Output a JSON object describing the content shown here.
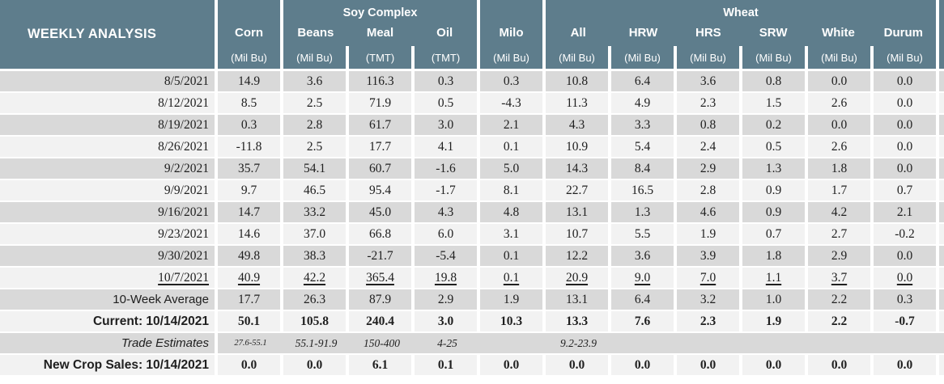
{
  "colors": {
    "header_bg": "#5E7D8C",
    "row_dark": "#D9D9D9",
    "row_light": "#F2F2F2",
    "header_text": "#FFFFFF",
    "data_text": "#202020"
  },
  "chart_data": {
    "type": "table",
    "title": "WEEKLY ANALYSIS",
    "column_groups": [
      {
        "label": "",
        "columns": [
          "Corn"
        ]
      },
      {
        "label": "Soy Complex",
        "columns": [
          "Beans",
          "Meal",
          "Oil"
        ]
      },
      {
        "label": "",
        "columns": [
          "Milo"
        ]
      },
      {
        "label": "Wheat",
        "columns": [
          "All",
          "HRW",
          "HRS",
          "SRW",
          "White",
          "Durum"
        ]
      }
    ],
    "columns": [
      {
        "name": "Corn",
        "unit": "(Mil Bu)"
      },
      {
        "name": "Beans",
        "unit": "(Mil Bu)"
      },
      {
        "name": "Meal",
        "unit": "(TMT)"
      },
      {
        "name": "Oil",
        "unit": "(TMT)"
      },
      {
        "name": "Milo",
        "unit": "(Mil Bu)"
      },
      {
        "name": "All",
        "unit": "(Mil Bu)"
      },
      {
        "name": "HRW",
        "unit": "(Mil Bu)"
      },
      {
        "name": "HRS",
        "unit": "(Mil Bu)"
      },
      {
        "name": "SRW",
        "unit": "(Mil Bu)"
      },
      {
        "name": "White",
        "unit": "(Mil Bu)"
      },
      {
        "name": "Durum",
        "unit": "(Mil Bu)"
      }
    ],
    "rows": [
      {
        "label": "8/5/2021",
        "label_style": "date",
        "style": "normal",
        "values": [
          "14.9",
          "3.6",
          "116.3",
          "0.3",
          "0.3",
          "10.8",
          "6.4",
          "3.6",
          "0.8",
          "0.0",
          "0.0"
        ]
      },
      {
        "label": "8/12/2021",
        "label_style": "date",
        "style": "normal",
        "values": [
          "8.5",
          "2.5",
          "71.9",
          "0.5",
          "-4.3",
          "11.3",
          "4.9",
          "2.3",
          "1.5",
          "2.6",
          "0.0"
        ]
      },
      {
        "label": "8/19/2021",
        "label_style": "date",
        "style": "normal",
        "values": [
          "0.3",
          "2.8",
          "61.7",
          "3.0",
          "2.1",
          "4.3",
          "3.3",
          "0.8",
          "0.2",
          "0.0",
          "0.0"
        ]
      },
      {
        "label": "8/26/2021",
        "label_style": "date",
        "style": "normal",
        "values": [
          "-11.8",
          "2.5",
          "17.7",
          "4.1",
          "0.1",
          "10.9",
          "5.4",
          "2.4",
          "0.5",
          "2.6",
          "0.0"
        ]
      },
      {
        "label": "9/2/2021",
        "label_style": "date",
        "style": "normal",
        "values": [
          "35.7",
          "54.1",
          "60.7",
          "-1.6",
          "5.0",
          "14.3",
          "8.4",
          "2.9",
          "1.3",
          "1.8",
          "0.0"
        ]
      },
      {
        "label": "9/9/2021",
        "label_style": "date",
        "style": "normal",
        "values": [
          "9.7",
          "46.5",
          "95.4",
          "-1.7",
          "8.1",
          "22.7",
          "16.5",
          "2.8",
          "0.9",
          "1.7",
          "0.7"
        ]
      },
      {
        "label": "9/16/2021",
        "label_style": "date",
        "style": "normal",
        "values": [
          "14.7",
          "33.2",
          "45.0",
          "4.3",
          "4.8",
          "13.1",
          "1.3",
          "4.6",
          "0.9",
          "4.2",
          "2.1"
        ]
      },
      {
        "label": "9/23/2021",
        "label_style": "date",
        "style": "normal",
        "values": [
          "14.6",
          "37.0",
          "66.8",
          "6.0",
          "3.1",
          "10.7",
          "5.5",
          "1.9",
          "0.7",
          "2.7",
          "-0.2"
        ]
      },
      {
        "label": "9/30/2021",
        "label_style": "date",
        "style": "normal",
        "values": [
          "49.8",
          "38.3",
          "-21.7",
          "-5.4",
          "0.1",
          "12.2",
          "3.6",
          "3.9",
          "1.8",
          "2.9",
          "0.0"
        ]
      },
      {
        "label": "10/7/2021",
        "label_style": "date",
        "style": "underline",
        "values": [
          "40.9",
          "42.2",
          "365.4",
          "19.8",
          "0.1",
          "20.9",
          "9.0",
          "7.0",
          "1.1",
          "3.7",
          "0.0"
        ]
      },
      {
        "label": "10-Week Average",
        "label_style": "plain",
        "style": "normal",
        "values": [
          "17.7",
          "26.3",
          "87.9",
          "2.9",
          "1.9",
          "13.1",
          "6.4",
          "3.2",
          "1.0",
          "2.2",
          "0.3"
        ]
      },
      {
        "label": "Current: 10/14/2021",
        "label_style": "bold",
        "style": "bold",
        "values": [
          "50.1",
          "105.8",
          "240.4",
          "3.0",
          "10.3",
          "13.3",
          "7.6",
          "2.3",
          "1.9",
          "2.2",
          "-0.7"
        ]
      },
      {
        "label": "Trade Estimates",
        "label_style": "italic",
        "style": "estimates",
        "values": [
          "27.6-55.1",
          "55.1-91.9",
          "150-400",
          "4-25",
          "",
          "9.2-23.9"
        ]
      },
      {
        "label": "New Crop Sales: 10/14/2021",
        "label_style": "bold",
        "style": "bold",
        "values": [
          "0.0",
          "0.0",
          "6.1",
          "0.1",
          "0.0",
          "0.0",
          "0.0",
          "0.0",
          "0.0",
          "0.0",
          "0.0"
        ]
      }
    ]
  }
}
